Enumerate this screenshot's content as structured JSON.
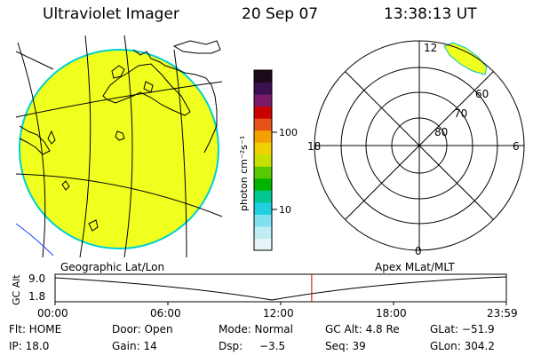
{
  "header": {
    "instrument": "Ultraviolet Imager",
    "date": "20 Sep 07",
    "time": "13:38:13 UT"
  },
  "colorbar": {
    "unit_label": "photon cm⁻²s⁻¹",
    "tick_100": "100",
    "tick_10": "10",
    "colors_top_to_bottom": [
      "#1a0a1a",
      "#3a1050",
      "#7a1a6a",
      "#cc0000",
      "#e8501a",
      "#f4a000",
      "#f0d000",
      "#c8e000",
      "#58c800",
      "#00b400",
      "#00c890",
      "#20d0e0",
      "#80e0f0",
      "#c0ecf4",
      "#e8f4f8"
    ]
  },
  "map": {
    "projection_label": "Geographic Lat/Lon",
    "disc_fill": "#f0ff1e",
    "disc_edge": "#00d0d0"
  },
  "polar": {
    "coord_label": "Apex MLat/MLT",
    "mlt_labels": {
      "top": "12",
      "bottom": "0",
      "left": "18",
      "right": "6"
    },
    "lat_labels": [
      "60",
      "70",
      "80"
    ],
    "patch_fill": "#f0ff1e"
  },
  "timeline": {
    "axis_label": "GC Alt",
    "y_labels": [
      "9.0",
      "1.8"
    ],
    "x_labels": [
      "00:00",
      "06:00",
      "12:00",
      "18:00",
      "23:59"
    ],
    "current_marker_hours": 13.637
  },
  "info": {
    "filter": "Flt: HOME",
    "door": "Door: Open",
    "mode": "Mode: Normal",
    "gc_alt": "GC Alt: 4.8 Re",
    "glat": "GLat: −51.9",
    "ip": "IP: 18.0",
    "gain": "Gain: 14",
    "dsp_label": "Dsp:",
    "dsp_value": "−3.5",
    "seq": "Seq: 39",
    "glon": "GLon: 304.2"
  }
}
